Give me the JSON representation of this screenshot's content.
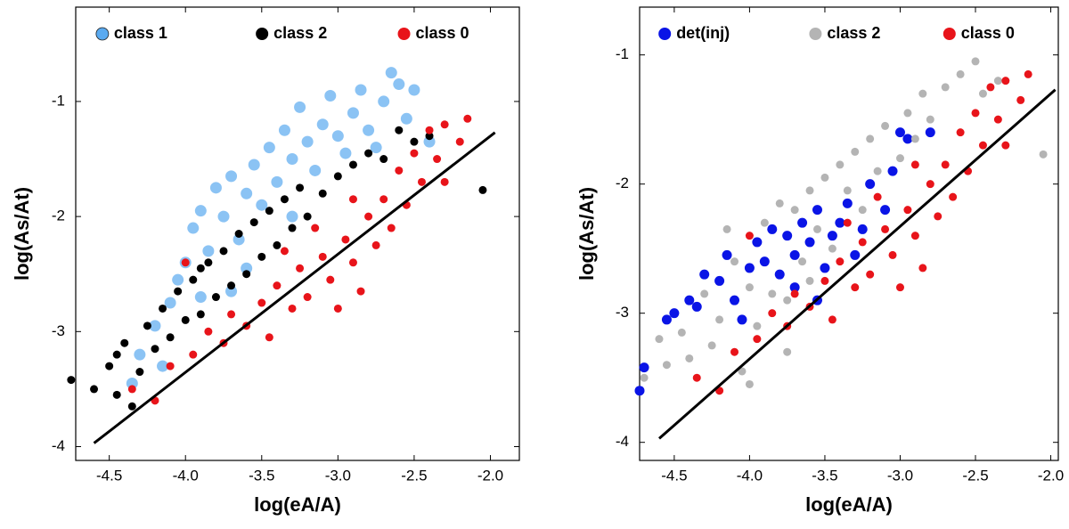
{
  "chart_data": [
    {
      "type": "scatter",
      "xlabel": "log(eA/A)",
      "ylabel": "log(As/At)",
      "xlim": [
        -4.72,
        -1.81
      ],
      "ylim": [
        -4.12,
        -0.18
      ],
      "xticks": [
        -4.5,
        {
          "value": -4,
          "label": "-4.0"
        },
        -3.5,
        {
          "value": -3,
          "label": "-3.0"
        },
        -2.5,
        {
          "value": -2,
          "label": "-2.0"
        }
      ],
      "yticks": [
        -4,
        -3,
        -2,
        -1
      ],
      "legend": "top",
      "series": [
        {
          "name": "class 1",
          "color": "#5aaaf0",
          "x": [
            -4.35,
            -4.3,
            -4.2,
            -4.1,
            -4.05,
            -4.0,
            -3.95,
            -3.9,
            -3.85,
            -3.8,
            -3.75,
            -3.7,
            -3.65,
            -3.6,
            -3.55,
            -3.5,
            -3.45,
            -3.4,
            -3.35,
            -3.3,
            -3.25,
            -3.2,
            -3.15,
            -3.1,
            -3.05,
            -3.0,
            -2.95,
            -2.9,
            -2.85,
            -2.8,
            -2.75,
            -2.7,
            -2.65,
            -2.6,
            -2.55,
            -2.5,
            -3.6,
            -3.9,
            -4.15,
            -3.3,
            -3.7,
            -2.4
          ],
          "values": [
            -3.45,
            -3.2,
            -2.95,
            -2.75,
            -2.55,
            -2.4,
            -2.1,
            -1.95,
            -2.3,
            -1.75,
            -2.0,
            -1.65,
            -2.2,
            -1.8,
            -1.55,
            -1.9,
            -1.4,
            -1.7,
            -1.25,
            -1.5,
            -1.05,
            -1.35,
            -1.6,
            -1.2,
            -0.95,
            -1.3,
            -1.45,
            -1.1,
            -0.9,
            -1.25,
            -1.4,
            -1.0,
            -0.75,
            -0.85,
            -1.15,
            -0.9,
            -2.45,
            -2.7,
            -3.3,
            -2.0,
            -2.65,
            -1.35
          ]
        },
        {
          "name": "class 2",
          "color": "#000000",
          "x": [
            -4.75,
            -4.6,
            -4.5,
            -4.45,
            -4.4,
            -4.35,
            -4.3,
            -4.25,
            -4.2,
            -4.15,
            -4.1,
            -4.05,
            -4.0,
            -3.95,
            -3.9,
            -3.85,
            -3.8,
            -3.75,
            -3.7,
            -3.65,
            -3.6,
            -3.55,
            -3.5,
            -3.45,
            -3.4,
            -3.35,
            -3.3,
            -3.25,
            -3.2,
            -3.1,
            -3.0,
            -2.9,
            -2.8,
            -2.7,
            -2.6,
            -2.5,
            -2.4,
            -2.05,
            -4.45,
            -3.9
          ],
          "values": [
            -3.42,
            -3.5,
            -3.3,
            -3.55,
            -3.1,
            -3.65,
            -3.35,
            -2.95,
            -3.15,
            -2.8,
            -3.05,
            -2.65,
            -2.9,
            -2.55,
            -2.85,
            -2.4,
            -2.7,
            -2.3,
            -2.6,
            -2.15,
            -2.5,
            -2.05,
            -2.35,
            -1.95,
            -2.25,
            -1.85,
            -2.1,
            -1.75,
            -2.0,
            -1.8,
            -1.65,
            -1.55,
            -1.45,
            -1.5,
            -1.25,
            -1.35,
            -1.3,
            -1.77,
            -3.2,
            -2.45
          ]
        },
        {
          "name": "class 0",
          "color": "#e8141a",
          "x": [
            -4.35,
            -4.2,
            -4.1,
            -4.0,
            -3.95,
            -3.85,
            -3.75,
            -3.7,
            -3.6,
            -3.5,
            -3.45,
            -3.4,
            -3.3,
            -3.25,
            -3.2,
            -3.1,
            -3.05,
            -3.0,
            -2.95,
            -2.9,
            -2.85,
            -2.8,
            -2.75,
            -2.7,
            -2.65,
            -2.6,
            -2.55,
            -2.5,
            -2.45,
            -2.4,
            -2.35,
            -2.3,
            -2.2,
            -2.15,
            -2.3,
            -2.9,
            -3.15,
            -3.35
          ],
          "values": [
            -3.5,
            -3.6,
            -3.3,
            -2.4,
            -3.2,
            -3.0,
            -3.1,
            -2.85,
            -2.95,
            -2.75,
            -3.05,
            -2.6,
            -2.8,
            -2.45,
            -2.7,
            -2.35,
            -2.55,
            -2.8,
            -2.2,
            -2.4,
            -2.65,
            -2.0,
            -2.25,
            -1.85,
            -2.1,
            -1.6,
            -1.9,
            -1.45,
            -1.7,
            -1.25,
            -1.5,
            -1.2,
            -1.35,
            -1.15,
            -1.7,
            -1.85,
            -2.1,
            -2.3
          ]
        }
      ],
      "line": {
        "color": "#000000",
        "x": [
          -4.6,
          -1.97
        ],
        "values": [
          -3.97,
          -1.27
        ]
      }
    },
    {
      "type": "scatter",
      "xlabel": "log(eA/A)",
      "ylabel": "log(As/At)",
      "xlim": [
        -4.73,
        -1.95
      ],
      "ylim": [
        -4.14,
        -0.63
      ],
      "xticks": [
        -4.5,
        {
          "value": -4,
          "label": "-4.0"
        },
        -3.5,
        {
          "value": -3,
          "label": "-3.0"
        },
        -2.5,
        {
          "value": -2,
          "label": "-2.0"
        }
      ],
      "yticks": [
        -4,
        -3,
        -2,
        -1
      ],
      "legend": "top",
      "series": [
        {
          "name": "det(inj)",
          "color": "#0a14e6",
          "x": [
            -4.73,
            -4.7,
            -4.55,
            -4.5,
            -4.4,
            -4.35,
            -4.2,
            -4.15,
            -4.1,
            -4.05,
            -4.0,
            -3.95,
            -3.9,
            -3.85,
            -3.8,
            -3.75,
            -3.7,
            -3.65,
            -3.6,
            -3.55,
            -3.5,
            -3.45,
            -3.4,
            -3.35,
            -3.3,
            -3.25,
            -3.2,
            -3.1,
            -3.05,
            -3.0,
            -2.95,
            -2.8,
            -3.7,
            -4.3,
            -3.55
          ],
          "values": [
            -3.6,
            -3.42,
            -3.05,
            -3.0,
            -2.9,
            -2.95,
            -2.75,
            -2.55,
            -2.9,
            -3.05,
            -2.65,
            -2.45,
            -2.6,
            -2.35,
            -2.7,
            -2.4,
            -2.55,
            -2.3,
            -2.45,
            -2.2,
            -2.65,
            -2.4,
            -2.3,
            -2.15,
            -2.55,
            -2.35,
            -2.0,
            -2.2,
            -1.9,
            -1.6,
            -1.65,
            -1.6,
            -2.8,
            -2.7,
            -2.9
          ]
        },
        {
          "name": "class 2",
          "color": "#b4b4b4",
          "x": [
            -4.7,
            -4.6,
            -4.55,
            -4.45,
            -4.4,
            -4.3,
            -4.25,
            -4.2,
            -4.1,
            -4.05,
            -4.0,
            -3.95,
            -3.9,
            -3.85,
            -3.8,
            -3.75,
            -3.7,
            -3.65,
            -3.6,
            -3.55,
            -3.5,
            -3.45,
            -3.4,
            -3.35,
            -3.3,
            -3.25,
            -3.2,
            -3.15,
            -3.1,
            -3.0,
            -2.95,
            -2.9,
            -2.85,
            -2.8,
            -2.7,
            -2.6,
            -2.5,
            -2.45,
            -2.35,
            -2.05,
            -4.0,
            -3.75,
            -4.15,
            -3.6
          ],
          "values": [
            -3.5,
            -3.2,
            -3.4,
            -3.15,
            -3.35,
            -2.85,
            -3.25,
            -3.05,
            -2.6,
            -3.45,
            -2.8,
            -3.1,
            -2.3,
            -2.85,
            -2.15,
            -2.9,
            -2.2,
            -2.6,
            -2.05,
            -2.35,
            -1.95,
            -2.5,
            -1.85,
            -2.05,
            -1.75,
            -2.2,
            -1.65,
            -1.9,
            -1.55,
            -1.8,
            -1.45,
            -1.65,
            -1.3,
            -1.5,
            -1.25,
            -1.15,
            -1.05,
            -1.3,
            -1.2,
            -1.77,
            -3.55,
            -3.3,
            -2.35,
            -2.75
          ]
        },
        {
          "name": "class 0",
          "color": "#e8141a",
          "x": [
            -4.35,
            -4.2,
            -4.1,
            -4.0,
            -3.95,
            -3.85,
            -3.75,
            -3.7,
            -3.6,
            -3.5,
            -3.45,
            -3.4,
            -3.3,
            -3.25,
            -3.2,
            -3.1,
            -3.05,
            -3.0,
            -2.95,
            -2.9,
            -2.85,
            -2.8,
            -2.75,
            -2.7,
            -2.65,
            -2.6,
            -2.55,
            -2.5,
            -2.45,
            -2.4,
            -2.35,
            -2.3,
            -2.2,
            -2.15,
            -2.3,
            -2.9,
            -3.15,
            -3.35
          ],
          "values": [
            -3.5,
            -3.6,
            -3.3,
            -2.4,
            -3.2,
            -3.0,
            -3.1,
            -2.85,
            -2.95,
            -2.75,
            -3.05,
            -2.6,
            -2.8,
            -2.45,
            -2.7,
            -2.35,
            -2.55,
            -2.8,
            -2.2,
            -2.4,
            -2.65,
            -2.0,
            -2.25,
            -1.85,
            -2.1,
            -1.6,
            -1.9,
            -1.45,
            -1.7,
            -1.25,
            -1.5,
            -1.2,
            -1.35,
            -1.15,
            -1.7,
            -1.85,
            -2.1,
            -2.3
          ]
        }
      ],
      "line": {
        "color": "#000000",
        "x": [
          -4.6,
          -1.97
        ],
        "values": [
          -3.97,
          -1.27
        ]
      }
    }
  ]
}
